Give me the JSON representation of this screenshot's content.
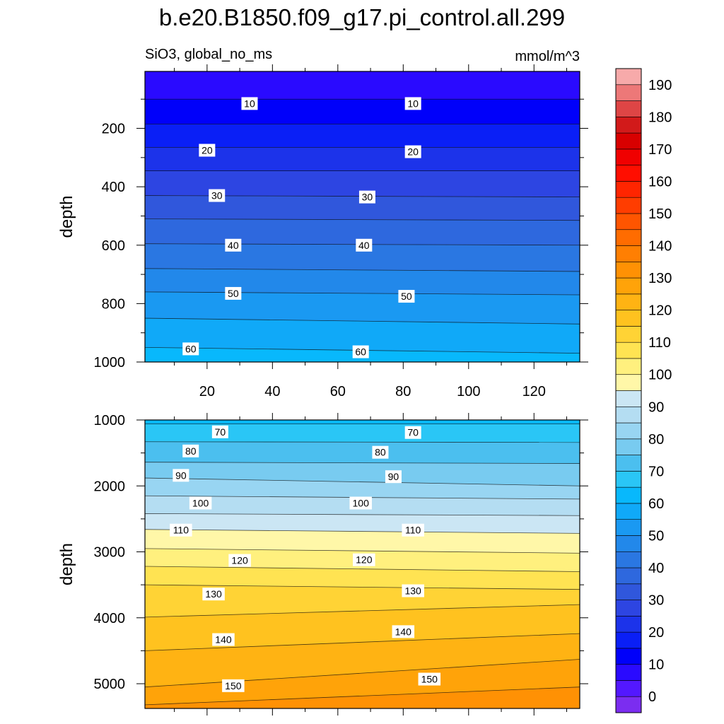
{
  "title": "b.e20.B1850.f09_g17.pi_control.all.299",
  "left_subtitle": "SiO3, global_no_ms",
  "right_subtitle": "mmol/m^3",
  "chart_data": [
    {
      "type": "heatmap",
      "panel": "upper",
      "ylabel": "depth",
      "xlabel": "",
      "xlim": [
        1,
        134
      ],
      "ylim": [
        1000,
        5
      ],
      "x_ticks": [
        20,
        40,
        60,
        80,
        100,
        120
      ],
      "y_ticks": [
        200,
        400,
        600,
        800,
        1000
      ],
      "x_tick_labels": [
        "20",
        "40",
        "60",
        "80",
        "100",
        "120"
      ],
      "y_tick_labels": [
        "200",
        "400",
        "600",
        "800",
        "1000"
      ],
      "contour_lines_depth_at_xmin_xmax": [
        [
          5,
          5
        ],
        [
          100,
          100
        ],
        [
          185,
          185
        ],
        [
          265,
          265
        ],
        [
          345,
          345
        ],
        [
          430,
          435
        ],
        [
          510,
          515
        ],
        [
          595,
          600
        ],
        [
          680,
          690
        ],
        [
          760,
          770
        ],
        [
          850,
          870
        ],
        [
          950,
          970
        ]
      ],
      "contour_labels": [
        {
          "text": "10",
          "x": 33,
          "y": 115
        },
        {
          "text": "10",
          "x": 83,
          "y": 115
        },
        {
          "text": "20",
          "x": 20,
          "y": 275
        },
        {
          "text": "20",
          "x": 83,
          "y": 280
        },
        {
          "text": "30",
          "x": 23,
          "y": 430
        },
        {
          "text": "30",
          "x": 69,
          "y": 435
        },
        {
          "text": "40",
          "x": 28,
          "y": 600
        },
        {
          "text": "40",
          "x": 68,
          "y": 600
        },
        {
          "text": "50",
          "x": 28,
          "y": 765
        },
        {
          "text": "50",
          "x": 81,
          "y": 775
        },
        {
          "text": "60",
          "x": 15,
          "y": 955
        },
        {
          "text": "60",
          "x": 67,
          "y": 965
        }
      ]
    },
    {
      "type": "heatmap",
      "panel": "lower",
      "ylabel": "depth",
      "xlabel": "",
      "xlim": [
        1,
        134
      ],
      "ylim": [
        5375,
        1000
      ],
      "x_ticks": [
        20,
        40,
        60,
        80,
        100,
        120
      ],
      "y_ticks": [
        1000,
        2000,
        3000,
        4000,
        5000
      ],
      "x_tick_labels": [
        "20",
        "40",
        "60",
        "80",
        "100",
        "120"
      ],
      "y_tick_labels": [
        "1000",
        "2000",
        "3000",
        "4000",
        "5000"
      ],
      "contour_lines_depth_at_xmin_xmax": [
        [
          1060,
          1060
        ],
        [
          1330,
          1340
        ],
        [
          1640,
          1660
        ],
        [
          1880,
          2000
        ],
        [
          2150,
          2200
        ],
        [
          2420,
          2450
        ],
        [
          2660,
          2720
        ],
        [
          2950,
          3020
        ],
        [
          3220,
          3300
        ],
        [
          3500,
          3570
        ],
        [
          3990,
          3800
        ],
        [
          4500,
          4240
        ],
        [
          5050,
          4630
        ],
        [
          5320,
          5050
        ]
      ],
      "contour_labels": [
        {
          "text": "70",
          "x": 24,
          "y": 1180
        },
        {
          "text": "70",
          "x": 83,
          "y": 1190
        },
        {
          "text": "80",
          "x": 15,
          "y": 1470
        },
        {
          "text": "80",
          "x": 73,
          "y": 1490
        },
        {
          "text": "90",
          "x": 12,
          "y": 1840
        },
        {
          "text": "90",
          "x": 77,
          "y": 1860
        },
        {
          "text": "100",
          "x": 18,
          "y": 2260
        },
        {
          "text": "100",
          "x": 67,
          "y": 2260
        },
        {
          "text": "110",
          "x": 12,
          "y": 2670
        },
        {
          "text": "110",
          "x": 83,
          "y": 2670
        },
        {
          "text": "120",
          "x": 30,
          "y": 3130
        },
        {
          "text": "120",
          "x": 68,
          "y": 3120
        },
        {
          "text": "130",
          "x": 22,
          "y": 3640
        },
        {
          "text": "130",
          "x": 83,
          "y": 3590
        },
        {
          "text": "140",
          "x": 25,
          "y": 4330
        },
        {
          "text": "140",
          "x": 80,
          "y": 4210
        },
        {
          "text": "150",
          "x": 28,
          "y": 5030
        },
        {
          "text": "150",
          "x": 88,
          "y": 4930
        }
      ]
    }
  ],
  "colorbar": {
    "levels": [
      -5,
      0,
      5,
      10,
      15,
      20,
      25,
      30,
      35,
      40,
      45,
      50,
      55,
      60,
      65,
      70,
      75,
      80,
      85,
      90,
      95,
      100,
      105,
      110,
      115,
      120,
      125,
      130,
      135,
      140,
      145,
      150,
      155,
      160,
      165,
      170,
      175,
      180,
      185,
      190,
      195
    ],
    "labels": [
      "0",
      "10",
      "20",
      "30",
      "40",
      "50",
      "60",
      "70",
      "80",
      "90",
      "100",
      "110",
      "120",
      "130",
      "140",
      "150",
      "160",
      "170",
      "180",
      "190"
    ],
    "colors": [
      "#7b2df0",
      "#5318ff",
      "#2a0aff",
      "#0000fa",
      "#0a1ff6",
      "#1c33ea",
      "#2d45e2",
      "#3057dc",
      "#2e68de",
      "#2a77e2",
      "#2288ea",
      "#1a99f2",
      "#10a9f8",
      "#08b8fc",
      "#2ac6f6",
      "#4bbfef",
      "#78cbf0",
      "#98d5f2",
      "#b4ddf2",
      "#cbe6f4",
      "#fff7a8",
      "#fff07e",
      "#ffe352",
      "#ffd335",
      "#ffc21f",
      "#ffb313",
      "#ffa309",
      "#ff9104",
      "#ff7f02",
      "#ff6c00",
      "#ff5500",
      "#ff3d00",
      "#ff2500",
      "#ff0e00",
      "#f00000",
      "#d80000",
      "#d21a1a",
      "#de4545",
      "#ed7878",
      "#f7aaaa"
    ]
  }
}
